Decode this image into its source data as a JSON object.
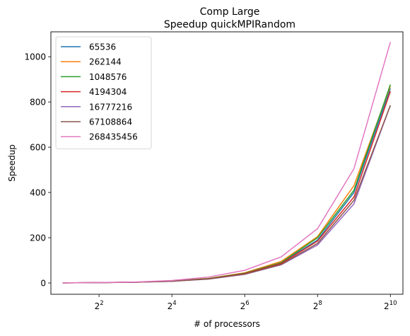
{
  "chart_data": {
    "type": "line",
    "title": "Comp Large",
    "subtitle": "Speedup quickMPIRandom",
    "xlabel": "# of processors",
    "ylabel": "Speedup",
    "x_scale": "log2",
    "x": [
      2,
      4,
      8,
      16,
      32,
      64,
      128,
      256,
      512,
      1024
    ],
    "xlim": [
      1.6,
      1300
    ],
    "ylim": [
      -50,
      1110
    ],
    "xticks": [
      {
        "value": 4,
        "base": "2",
        "exp": "2"
      },
      {
        "value": 16,
        "base": "2",
        "exp": "4"
      },
      {
        "value": 64,
        "base": "2",
        "exp": "6"
      },
      {
        "value": 256,
        "base": "2",
        "exp": "8"
      },
      {
        "value": 1024,
        "base": "2",
        "exp": "10"
      }
    ],
    "yticks": [
      0,
      200,
      400,
      600,
      800,
      1000
    ],
    "ytick_labels": [
      "0",
      "200",
      "400",
      "600",
      "800",
      "1000"
    ],
    "legend_position": "top-left",
    "grid": false,
    "series": [
      {
        "name": "65536",
        "color": "#1f77b4",
        "values": [
          0.6,
          1.6,
          3.5,
          8,
          19,
          42,
          88,
          190,
          400,
          860
        ]
      },
      {
        "name": "262144",
        "color": "#ff7f0e",
        "values": [
          0.6,
          1.7,
          3.6,
          8.5,
          20,
          45,
          95,
          205,
          430,
          870
        ]
      },
      {
        "name": "1048576",
        "color": "#2ca02c",
        "values": [
          0.6,
          1.6,
          3.5,
          8,
          19.5,
          43,
          90,
          200,
          410,
          877
        ]
      },
      {
        "name": "4194304",
        "color": "#d62728",
        "values": [
          0.6,
          1.6,
          3.4,
          7.8,
          18.5,
          41,
          86,
          185,
          380,
          847
        ]
      },
      {
        "name": "16777216",
        "color": "#9467bd",
        "values": [
          0.5,
          1.5,
          3.2,
          7.2,
          17,
          38,
          80,
          168,
          350,
          785
        ]
      },
      {
        "name": "67108864",
        "color": "#8c564b",
        "values": [
          0.5,
          1.5,
          3.3,
          7.5,
          17.5,
          39,
          82,
          175,
          365,
          785
        ]
      },
      {
        "name": "268435456",
        "color": "#e377c2",
        "values": [
          0.6,
          2,
          4.5,
          11,
          26,
          56,
          115,
          240,
          505,
          1065
        ]
      }
    ]
  }
}
